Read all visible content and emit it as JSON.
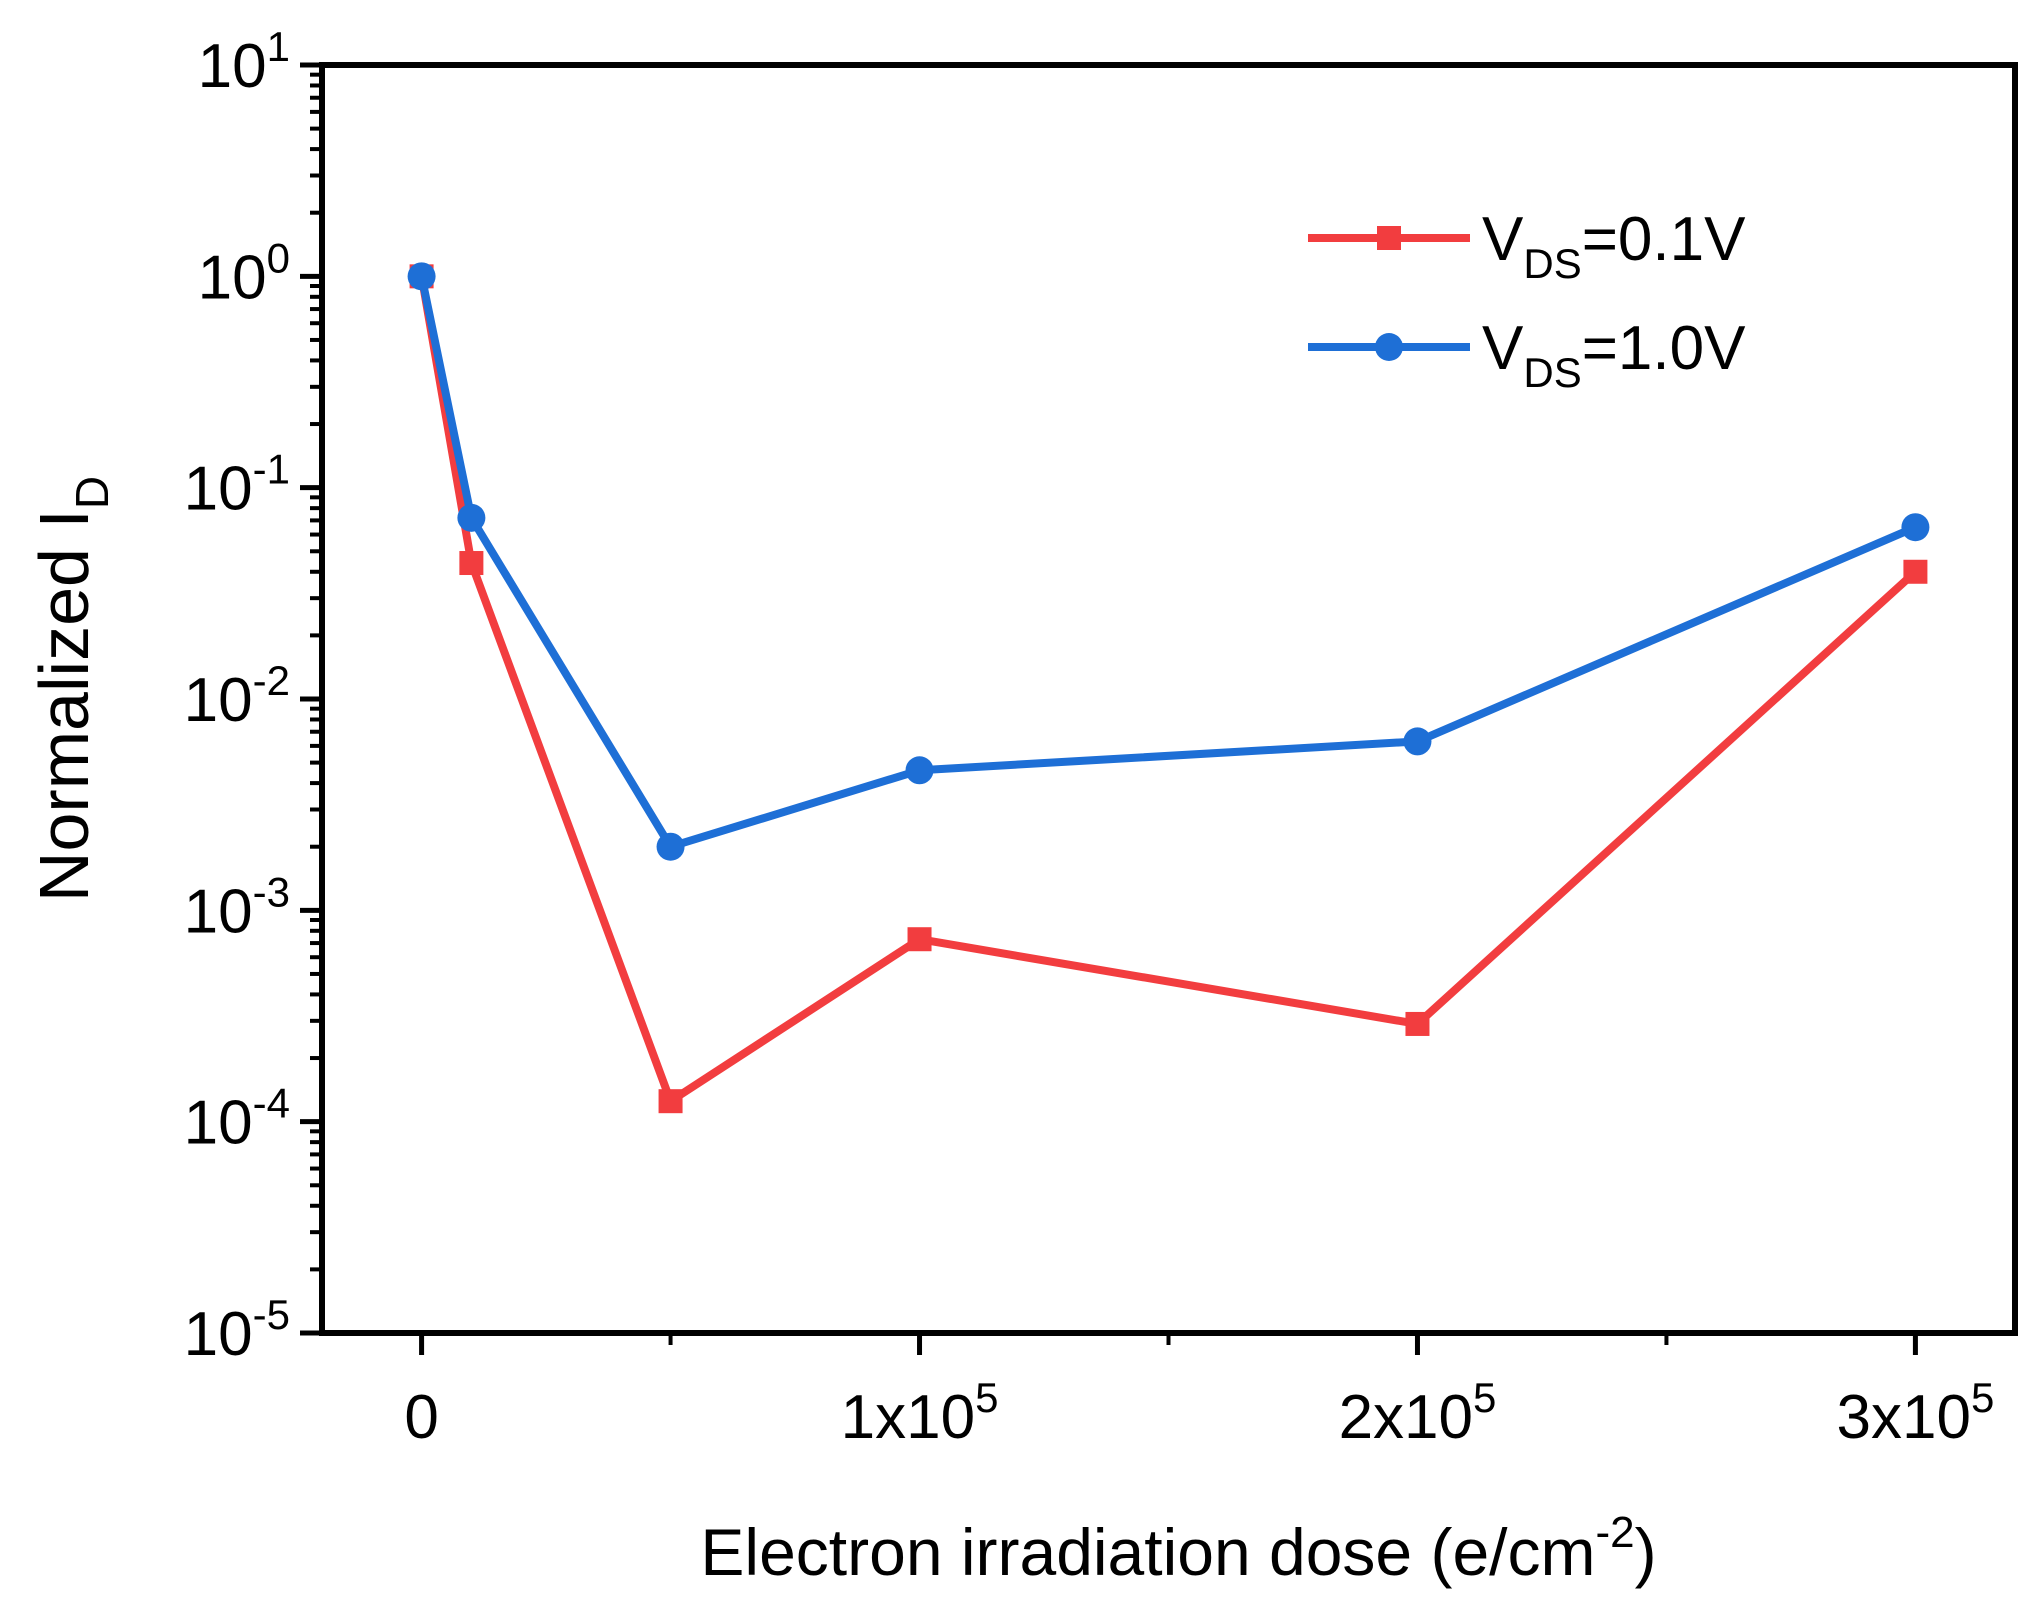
{
  "chart_data": {
    "type": "line",
    "title": "",
    "xlabel": "Electron irradiation dose (e/cm",
    "xlabel_sup": "-2",
    "xlabel_close": ")",
    "ylabel": "Normalized I",
    "ylabel_sub": "D",
    "x_scale": "linear",
    "y_scale": "log",
    "xlim": [
      -20000,
      320000
    ],
    "ylim": [
      1e-05,
      10
    ],
    "x_ticks": [
      {
        "value": 0,
        "base": "0",
        "exp": ""
      },
      {
        "value": 100000,
        "base": "1x10",
        "exp": "5"
      },
      {
        "value": 200000,
        "base": "2x10",
        "exp": "5"
      },
      {
        "value": 300000,
        "base": "3x10",
        "exp": "5"
      }
    ],
    "y_ticks": [
      {
        "value": 10,
        "base": "10",
        "exp": "1"
      },
      {
        "value": 1,
        "base": "10",
        "exp": "0"
      },
      {
        "value": 0.1,
        "base": "10",
        "exp": "-1"
      },
      {
        "value": 0.01,
        "base": "10",
        "exp": "-2"
      },
      {
        "value": 0.001,
        "base": "10",
        "exp": "-3"
      },
      {
        "value": 0.0001,
        "base": "10",
        "exp": "-4"
      },
      {
        "value": 1e-05,
        "base": "10",
        "exp": "-5"
      }
    ],
    "legend_position": "top-right",
    "series": [
      {
        "name": "V",
        "name_sub": "DS",
        "name_rest": "=0.1V",
        "color": "#f23d3f",
        "marker": "square",
        "x": [
          0,
          10000,
          50000,
          100000,
          200000,
          300000
        ],
        "y": [
          1.0,
          0.044,
          0.000125,
          0.00073,
          0.00029,
          0.04
        ]
      },
      {
        "name": "V",
        "name_sub": "DS",
        "name_rest": "=1.0V",
        "color": "#1e6fd6",
        "marker": "circle",
        "x": [
          0,
          10000,
          50000,
          100000,
          200000,
          300000
        ],
        "y": [
          1.0,
          0.072,
          0.002,
          0.0046,
          0.0063,
          0.065
        ]
      }
    ]
  }
}
